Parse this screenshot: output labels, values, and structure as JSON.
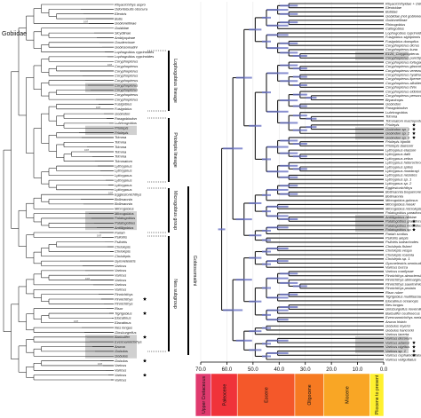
{
  "figure": {
    "title": "",
    "family_label": "Gobiidae",
    "left_tree": {
      "tips": [
        "Rhyacichthys aspro",
        "Odontobutis obscura",
        "Eleotris",
        "Butis",
        "Gobionellinae",
        "Gobiidae",
        "Sicydiinae",
        "Amblyopinae",
        "Oxudercinae",
        "Gobiosomatini",
        "Lophogobius cyprinoides",
        "Lophogobius cyprinoides",
        "Coryphopterus",
        "Coryphopterus",
        "Coryphopterus",
        "Coryphopterus",
        "Coryphopterus",
        "Coryphopterus",
        "Coryphopterus",
        "Coryphopterus",
        "Coryphopterus",
        "Fusigobius",
        "Fusigobius",
        "Gobiodon",
        "Paragobiodon",
        "Lubricogobius",
        "Priolepis",
        "Priolepis",
        "Trimma",
        "Trimma",
        "Trimma",
        "Trimma",
        "Trimma",
        "Trimmatom",
        "Lythrypnus",
        "Lythrypnus",
        "Lythrypnus",
        "Lythrypnus",
        "Lythrypnus",
        "Lythrypnus",
        "Egglestonichthys",
        "Bollmannia",
        "Bollmannia",
        "Microgobius",
        "Microgobius",
        "Palatogobius",
        "Palatogobius",
        "Antilligobius",
        "Pariah",
        "Psilotris",
        "Psilotris",
        "Chriolepis",
        "Chriolepis",
        "Chriolepis",
        "Gymneleotris",
        "Varicus",
        "Varicus",
        "Varicus",
        "Varicus",
        "Varicus",
        "Varicus",
        "Pinnichthys",
        "Pinnichthys",
        "Pinnichthys",
        "Risor",
        "Tigrigobius",
        "Elacatinus",
        "Elacatinus",
        "Nes longus",
        "Ginsburgellus",
        "Barbulifer",
        "Evermannichthys",
        "Aruma",
        "Gobulus",
        "Gobulus",
        "Gobulus",
        "Varicus",
        "Varicus",
        "Varicus",
        "Varicus"
      ]
    },
    "clade_labels": [
      "Lophogobius lineage",
      "Priolepis lineage",
      "Microgobius group",
      "Nes subgroup",
      "Gobiosomatini"
    ],
    "right_tree": {
      "tips": [
        "Rhyacichthyidae + Odontobutidae",
        "Eleotridae",
        "Butidae",
        "Gobiidae (not gobionellinae)",
        "Gobionellinae",
        "Rhinogobius",
        "Callogobius",
        "Lophogobius cyprinoides",
        "Fusigobius signipinnis",
        "Fusigobius duospilus",
        "Coryphopterus dicrus",
        "Coryphopterus kuna",
        "E126_Coryphopterus",
        "Coryphopterus punctipectophorus",
        "Coryphopterus tortugae",
        "Coryphopterus glaucofraenum",
        "Coryphopterus venezuelae",
        "Coryphopterus hyalinus",
        "Coryphopterus lipernes",
        "Coryphopterus alloides",
        "Coryphopterus thrix",
        "Coryphopterus eidolon",
        "Coryphopterus personatus",
        "Bryaninops",
        "Gobiodon",
        "Paragobiodon",
        "Lubricogobius",
        "Trimma",
        "Trimmatom macropodus",
        "Priolepis",
        "Gobiodon sp. 1",
        "Gobiodon sp. 2",
        "Gobiodon sp. 3",
        "Priolepis hipoliti",
        "Priolepis dawsoni",
        "Lythrypnus elasson",
        "Lythrypnus dalli",
        "Lythrypnus zebra",
        "Lythrypnus heterochroma",
        "Lythrypnus spilus",
        "Lythrypnus mowbrayi",
        "Lythrypnus nesiotes",
        "Lythrypnus sp. 1",
        "Lythrypnus sp. 2",
        "Egglestonichthys",
        "Bollmannia boqueronensis",
        "Bollmannia",
        "Microgobius gulosus",
        "Microgobius meeki",
        "Microgobius microlepis",
        "Palatogobius paradoxus",
        "Antilligobius nikkiae",
        "Palatogobius grandoculus",
        "Palatogobius incendius",
        "Palatogobius sp. 1",
        "Pariah scotius",
        "Psilotris alepis",
        "Psilotris batrachodes",
        "Chriolepis fisheri",
        "Chriolepis vespa",
        "Chriolepis roseola",
        "Chriolepis sp. 1",
        "Gymneleotris seminuda",
        "Varicus bucca",
        "Varicus marilynae",
        "Pinnichthys aimoriensis",
        "Pinnichthys atrimarginatus",
        "Pinnichthys saurimimica",
        "Pinnichthys prolata",
        "Risor ruber",
        "Tigrigobius multifasciatus",
        "Elacatinus oceanops",
        "Nes longus",
        "Ginsburgellus novemlineatus",
        "Barbulifer ceuthoecus",
        "Evermannichthys metzelaari",
        "Aruma histrio",
        "Gobulus myersi",
        "Gobulus hancocki",
        "Varicus lacerta",
        "Varicus decorum",
        "Varicus adamsi",
        "Varicus nigritus",
        "Varicus sp. 1",
        "Varicus cephalocellatus",
        "Varicus veliguttatus"
      ]
    },
    "axis": {
      "ticks": [
        "70.0",
        "60.0",
        "50.0",
        "40.0",
        "30.0",
        "20.0",
        "10.0",
        "0.0"
      ]
    },
    "epochs": [
      {
        "name": "Upper Cretaceous",
        "color": "#e03a6e"
      },
      {
        "name": "Paleocene",
        "color": "#f0333a"
      },
      {
        "name": "Eocene",
        "color": "#f4582a"
      },
      {
        "name": "Oligocene",
        "color": "#f67a22"
      },
      {
        "name": "Miocene",
        "color": "#f9a625"
      },
      {
        "name": "Pliocene to present",
        "color": "#fff02e"
      }
    ],
    "colors": {
      "branch": "#1a1a1a",
      "hpd_bar": "#6a73c4",
      "highlight_box": "#d0d0d0"
    },
    "icons": [
      "star-icon"
    ]
  }
}
